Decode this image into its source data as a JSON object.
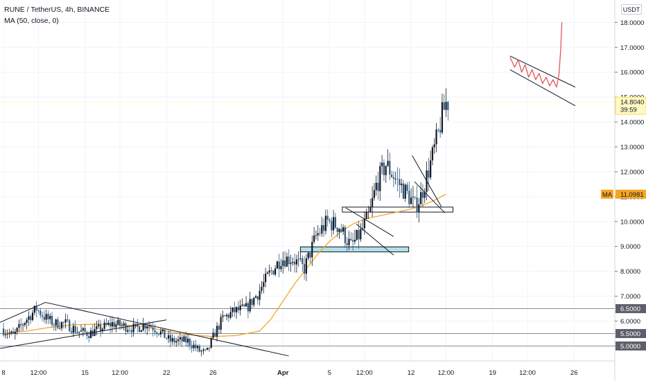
{
  "header": {
    "symbol_line": "RUNE / TetherUS, 4h, BINANCE",
    "indicator_line": "MA (50, close, 0)"
  },
  "currency_button": "USDT",
  "chart_data": {
    "type": "candlestick",
    "symbol": "RUNE / TetherUS",
    "interval": "4h",
    "exchange": "BINANCE",
    "indicator": "MA (50, close, 0)",
    "ylim": [
      4.4,
      18.9
    ],
    "y_ticks": [
      "5.0000",
      "6.0000",
      "7.0000",
      "8.0000",
      "9.0000",
      "10.0000",
      "11.0000",
      "12.0000",
      "13.0000",
      "14.0000",
      "15.0000",
      "16.0000",
      "17.0000",
      "18.0000"
    ],
    "x_ticks": [
      {
        "label": "8",
        "t": 0
      },
      {
        "label": "12:00",
        "t": 3
      },
      {
        "label": "15",
        "t": 7
      },
      {
        "label": "12:00",
        "t": 10
      },
      {
        "label": "22",
        "t": 14
      },
      {
        "label": "26",
        "t": 18
      },
      {
        "label": "Apr",
        "t": 24
      },
      {
        "label": "5",
        "t": 28
      },
      {
        "label": "12:00",
        "t": 31
      },
      {
        "label": "12",
        "t": 35
      },
      {
        "label": "12:00",
        "t": 38
      },
      {
        "label": "19",
        "t": 42
      },
      {
        "label": "12:00",
        "t": 45
      },
      {
        "label": "26",
        "t": 49
      }
    ],
    "x_range": [
      -0.3,
      52.5
    ],
    "price_path": [
      [
        0,
        5.7
      ],
      [
        1,
        5.4
      ],
      [
        2,
        6.0
      ],
      [
        3,
        6.5
      ],
      [
        3.6,
        6.2
      ],
      [
        4.5,
        5.9
      ],
      [
        5.5,
        5.9
      ],
      [
        6.5,
        5.6
      ],
      [
        7.5,
        5.5
      ],
      [
        8.5,
        5.7
      ],
      [
        9.5,
        5.9
      ],
      [
        10.5,
        5.8
      ],
      [
        11.5,
        5.7
      ],
      [
        12.5,
        5.9
      ],
      [
        13.5,
        5.6
      ],
      [
        14.5,
        5.2
      ],
      [
        16,
        5.2
      ],
      [
        17,
        4.8
      ],
      [
        17.6,
        4.7
      ],
      [
        18.3,
        5.5
      ],
      [
        19,
        6.1
      ],
      [
        20,
        6.4
      ],
      [
        21,
        6.5
      ],
      [
        22,
        7.1
      ],
      [
        23,
        7.9
      ],
      [
        24,
        8.5
      ],
      [
        25,
        8.5
      ],
      [
        26,
        8.1
      ],
      [
        27,
        9.4
      ],
      [
        28,
        10.0
      ],
      [
        29,
        9.8
      ],
      [
        30,
        9.0
      ],
      [
        30.8,
        9.5
      ],
      [
        31.6,
        10.3
      ],
      [
        32.2,
        11.5
      ],
      [
        33,
        12.3
      ],
      [
        34,
        11.6
      ],
      [
        35,
        11.0
      ],
      [
        35.5,
        10.6
      ],
      [
        36,
        11.0
      ],
      [
        37,
        12.6
      ],
      [
        37.5,
        13.5
      ],
      [
        37.8,
        14.2
      ],
      [
        38.2,
        14.8
      ]
    ],
    "ma_path": [
      [
        0,
        5.5
      ],
      [
        2,
        5.6
      ],
      [
        4,
        5.75
      ],
      [
        6,
        5.85
      ],
      [
        8,
        5.88
      ],
      [
        10,
        5.85
      ],
      [
        12,
        5.78
      ],
      [
        14,
        5.6
      ],
      [
        16,
        5.45
      ],
      [
        18,
        5.38
      ],
      [
        20,
        5.42
      ],
      [
        22,
        5.6
      ],
      [
        23,
        6.1
      ],
      [
        24,
        6.8
      ],
      [
        25,
        7.5
      ],
      [
        26,
        8.1
      ],
      [
        27,
        8.7
      ],
      [
        28,
        9.2
      ],
      [
        29,
        9.6
      ],
      [
        30,
        9.9
      ],
      [
        31,
        10.1
      ],
      [
        32,
        10.2
      ],
      [
        33,
        10.3
      ],
      [
        34,
        10.4
      ],
      [
        35,
        10.5
      ],
      [
        36,
        10.65
      ],
      [
        37,
        10.85
      ],
      [
        38,
        11.1
      ]
    ],
    "horizontal_levels": [
      6.5,
      5.5,
      5.0
    ],
    "price_tags": [
      {
        "value": "6.5000",
        "y": 6.5
      },
      {
        "value": "5.5000",
        "y": 5.5
      },
      {
        "value": "5.0000",
        "y": 5.0
      }
    ],
    "current_price": {
      "value": "14.8040",
      "countdown": "39:59",
      "y": 14.804
    },
    "ma_tag": {
      "label": "MA",
      "value": "11.0981",
      "y": 11.0981
    },
    "zones": [
      {
        "t1": 25.5,
        "t2": 34.8,
        "y1": 8.78,
        "y2": 8.98,
        "color": "#b2e0e8"
      },
      {
        "t1": 29.1,
        "t2": 38.6,
        "y1": 10.38,
        "y2": 10.58,
        "color": "#ffffff"
      }
    ],
    "trend_lines": [
      {
        "t1": -0.3,
        "y1": 5.95,
        "t2": 3.6,
        "y2": 6.75
      },
      {
        "t1": -0.3,
        "y1": 4.9,
        "t2": 14,
        "y2": 6.05
      },
      {
        "t1": 3.6,
        "y1": 6.75,
        "t2": 24.5,
        "y2": 4.6
      },
      {
        "t1": 29.4,
        "y1": 10.55,
        "t2": 33.5,
        "y2": 9.4
      },
      {
        "t1": 30.3,
        "y1": 9.9,
        "t2": 33.5,
        "y2": 8.65
      },
      {
        "t1": 35.1,
        "y1": 12.65,
        "t2": 37.6,
        "y2": 10.6
      },
      {
        "t1": 35.3,
        "y1": 11.6,
        "t2": 37.9,
        "y2": 10.35
      },
      {
        "t1": 43.5,
        "y1": 16.65,
        "t2": 49.1,
        "y2": 15.4
      },
      {
        "t1": 43.5,
        "y1": 16.1,
        "t2": 49.1,
        "y2": 14.65
      }
    ],
    "projection_path": [
      [
        43.5,
        16.6
      ],
      [
        43.9,
        16.2
      ],
      [
        44.2,
        16.5
      ],
      [
        44.5,
        16.0
      ],
      [
        44.8,
        16.3
      ],
      [
        45.1,
        15.8
      ],
      [
        45.4,
        16.1
      ],
      [
        45.7,
        15.7
      ],
      [
        46.0,
        15.95
      ],
      [
        46.3,
        15.55
      ],
      [
        46.6,
        15.8
      ],
      [
        46.9,
        15.45
      ],
      [
        47.2,
        15.7
      ],
      [
        47.5,
        15.4
      ],
      [
        47.7,
        15.9
      ],
      [
        47.85,
        16.9
      ],
      [
        47.95,
        18.0
      ]
    ]
  },
  "colors": {
    "up_candle": "#131722",
    "down_candle": "#2f5b83",
    "ma_line": "#f5a623",
    "projection": "#e15759",
    "level_line": "#8a8e96",
    "zone_border": "#131722",
    "current_price_bg": "#fff9c4",
    "current_price_line": "#fff176",
    "ma_tag_bg": "#f5a623"
  }
}
